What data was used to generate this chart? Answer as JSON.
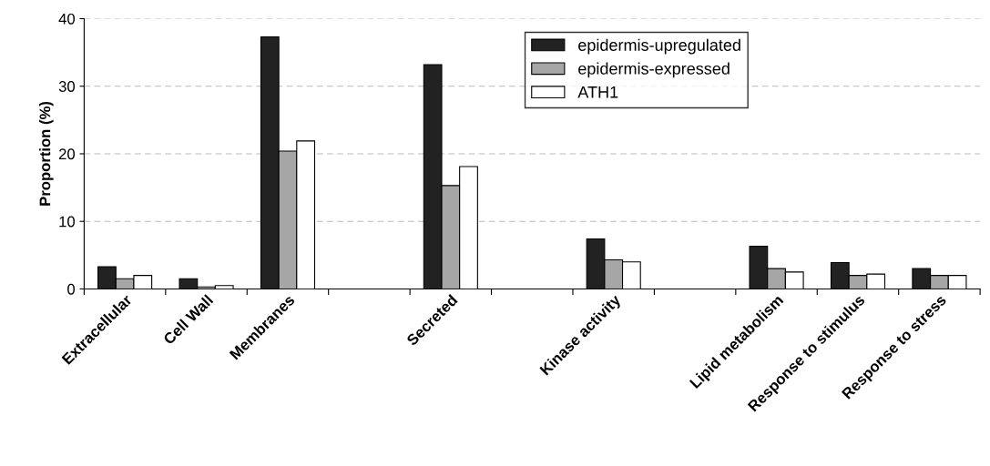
{
  "chart_data": {
    "type": "bar",
    "ylabel": "Proportion (%)",
    "categories": [
      "Extracellular",
      "Cell Wall",
      "Membranes",
      null,
      "Secreted",
      null,
      "Kinase activity",
      null,
      "Lipid metabolism",
      "Response to stimulus",
      "Response to stress"
    ],
    "series": [
      {
        "name": "epidermis-upregulated",
        "color": "#222222",
        "values": [
          3.3,
          1.5,
          37.3,
          null,
          33.2,
          null,
          7.4,
          null,
          6.3,
          3.9,
          3.0
        ]
      },
      {
        "name": "epidermis-expressed",
        "color": "#a6a6a6",
        "values": [
          1.5,
          0.3,
          20.4,
          null,
          15.3,
          null,
          4.3,
          null,
          3.0,
          2.0,
          2.0
        ]
      },
      {
        "name": "ATH1",
        "color": "#ffffff",
        "values": [
          2.0,
          0.5,
          21.9,
          null,
          18.1,
          null,
          4.0,
          null,
          2.5,
          2.2,
          2.0
        ]
      }
    ],
    "ylim": [
      0,
      40
    ],
    "yticks": [
      0,
      10,
      20,
      30,
      40
    ],
    "grid": "y",
    "legend": "top right"
  }
}
